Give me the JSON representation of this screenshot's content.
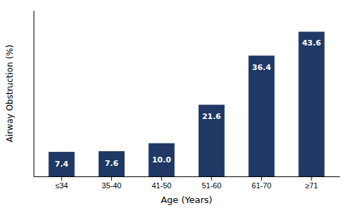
{
  "chart_data": {
    "type": "bar",
    "xlabel": "Age (Years)",
    "ylabel": "Airway Obstruction (%)",
    "categories": [
      "≤34",
      "35-40",
      "41-50",
      "51-60",
      "61-70",
      "≥71"
    ],
    "values": [
      7.4,
      7.6,
      10.0,
      21.6,
      36.4,
      43.6
    ],
    "value_labels": [
      "7.4",
      "7.6",
      "10.0",
      "21.6",
      "36.4",
      "43.6"
    ],
    "color": "#1F3864",
    "ylim": [
      0,
      50
    ],
    "grid": false,
    "data_labels": true,
    "tick_labels": "x"
  }
}
